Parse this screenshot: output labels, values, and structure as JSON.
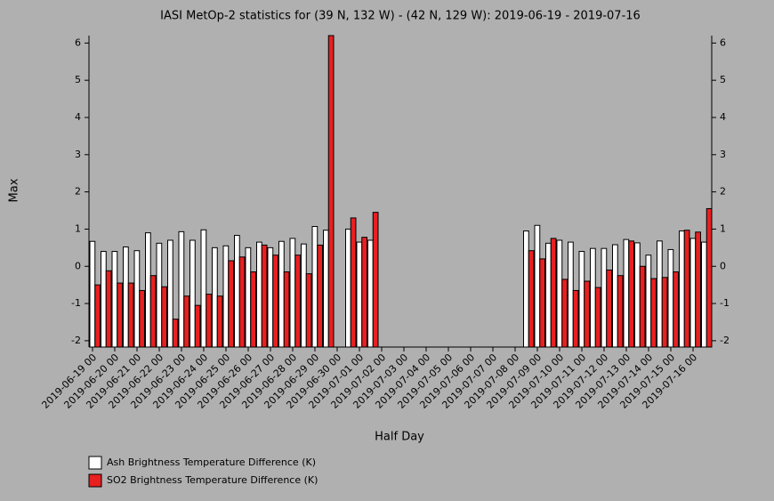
{
  "chart_data": {
    "type": "bar",
    "title": "IASI MetOp-2 statistics for (39 N, 132 W) - (42 N, 129 W): 2019-06-19 - 2019-07-16",
    "x_label": "Half Day",
    "y_label": "Max",
    "categories": [
      "2019-06-19 00",
      null,
      "2019-06-20 00",
      null,
      "2019-06-21 00",
      null,
      "2019-06-22 00",
      null,
      "2019-06-23 00",
      null,
      "2019-06-24 00",
      null,
      "2019-06-25 00",
      null,
      "2019-06-26 00",
      null,
      "2019-06-27 00",
      null,
      "2019-06-28 00",
      null,
      "2019-06-29 00",
      null,
      "2019-06-30 00",
      null,
      "2019-07-01 00",
      null,
      "2019-07-02 00",
      null,
      "2019-07-03 00",
      null,
      "2019-07-04 00",
      null,
      "2019-07-05 00",
      null,
      "2019-07-06 00",
      null,
      "2019-07-07 00",
      null,
      "2019-07-08 00",
      null,
      "2019-07-09 00",
      null,
      "2019-07-10 00",
      null,
      "2019-07-11 00",
      null,
      "2019-07-12 00",
      null,
      "2019-07-13 00",
      null,
      "2019-07-14 00",
      null,
      "2019-07-15 00",
      null,
      "2019-07-16 00",
      null
    ],
    "series": [
      {
        "name": "Ash Brightness Temperature Difference (K)",
        "color": "#ffffff",
        "values": [
          0.67,
          0.4,
          0.4,
          0.52,
          0.42,
          0.9,
          0.62,
          0.7,
          0.93,
          0.7,
          0.98,
          0.5,
          0.55,
          0.83,
          0.5,
          0.65,
          0.5,
          0.67,
          0.75,
          0.6,
          1.07,
          0.97,
          null,
          1.0,
          0.65,
          0.7,
          null,
          null,
          null,
          null,
          null,
          null,
          null,
          null,
          null,
          null,
          null,
          null,
          null,
          0.95,
          1.1,
          0.62,
          0.7,
          0.65,
          0.4,
          0.48,
          0.48,
          0.58,
          0.72,
          0.63,
          0.3,
          0.68,
          0.45,
          0.95,
          0.75,
          0.65
        ]
      },
      {
        "name": "SO2 Brightness Temperature Difference (K)",
        "color": "#e82020",
        "values": [
          -0.5,
          -0.12,
          -0.45,
          -0.45,
          -0.65,
          -0.25,
          -0.55,
          -1.42,
          -0.8,
          -1.05,
          -0.75,
          -0.8,
          0.15,
          0.25,
          -0.15,
          0.57,
          0.3,
          -0.15,
          0.3,
          -0.2,
          0.57,
          6.2,
          null,
          1.3,
          0.78,
          1.45,
          null,
          null,
          null,
          null,
          null,
          null,
          null,
          null,
          null,
          null,
          null,
          null,
          null,
          0.42,
          0.2,
          0.75,
          -0.35,
          -0.65,
          -0.4,
          -0.57,
          -0.1,
          -0.25,
          0.68,
          0.0,
          -0.33,
          -0.3,
          -0.15,
          0.97,
          0.92,
          1.55
        ]
      }
    ],
    "ylim": [
      -2.17,
      6.2
    ],
    "yticks": [
      -2,
      -1,
      0,
      1,
      2,
      3,
      4,
      5,
      6
    ]
  }
}
